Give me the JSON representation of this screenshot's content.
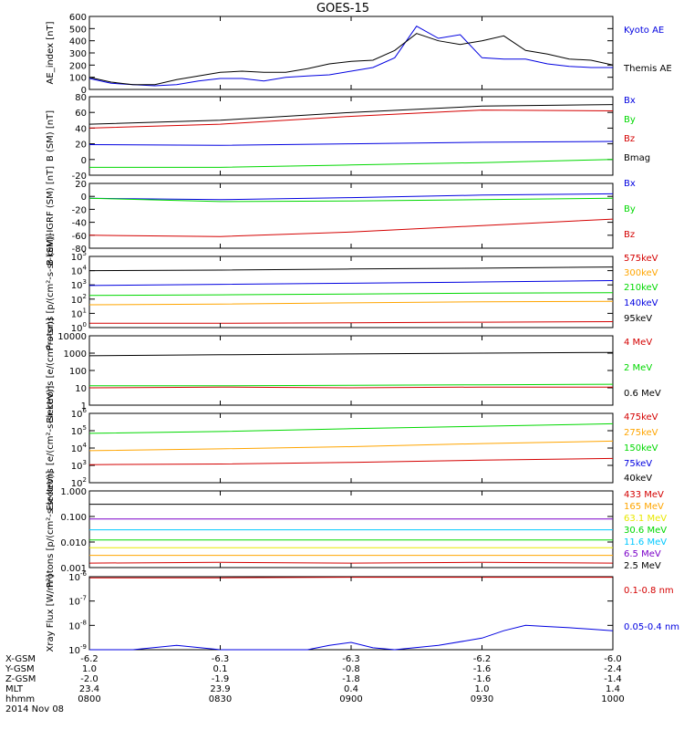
{
  "title": "GOES-15",
  "colors": {
    "black": "#000000",
    "red": "#d40000",
    "green": "#00d800",
    "blue": "#0000e0",
    "orange": "#ffa500",
    "cyan": "#00c8ff",
    "yellow": "#e8e800",
    "purple": "#7a00c8"
  },
  "chart_data": [
    {
      "type": "line",
      "panel": "ae-index",
      "ylabel": "AE_index [nT]",
      "ylim": [
        0,
        600
      ],
      "log": false,
      "yticks": [
        "0",
        "100",
        "200",
        "300",
        "400",
        "500",
        "600"
      ],
      "series": [
        {
          "name": "Kyoto AE",
          "color": "#0000e0",
          "x": [
            0,
            5,
            10,
            15,
            20,
            25,
            30,
            35,
            40,
            45,
            50,
            55,
            60,
            65,
            70,
            75,
            80,
            85,
            90,
            95,
            100,
            105,
            110,
            115,
            120
          ],
          "values": [
            90,
            50,
            40,
            30,
            40,
            70,
            90,
            90,
            70,
            100,
            110,
            120,
            150,
            180,
            260,
            520,
            420,
            450,
            260,
            250,
            250,
            210,
            190,
            180,
            180
          ]
        },
        {
          "name": "Themis AE",
          "color": "#000000",
          "x": [
            0,
            5,
            10,
            15,
            20,
            25,
            30,
            35,
            40,
            45,
            50,
            55,
            60,
            65,
            70,
            75,
            80,
            85,
            90,
            95,
            100,
            105,
            110,
            115,
            120
          ],
          "values": [
            100,
            60,
            40,
            40,
            80,
            110,
            140,
            150,
            140,
            140,
            170,
            210,
            230,
            240,
            320,
            460,
            400,
            370,
            400,
            440,
            320,
            290,
            250,
            240,
            200
          ]
        }
      ]
    },
    {
      "type": "line",
      "panel": "b-sm",
      "ylabel": "B (SM) [nT]",
      "ylim": [
        -20,
        80
      ],
      "log": false,
      "yticks": [
        "-20",
        "0",
        "20",
        "40",
        "60",
        "80"
      ],
      "series": [
        {
          "name": "Bx",
          "color": "#0000e0",
          "x": [
            0,
            30,
            60,
            90,
            120
          ],
          "values": [
            19,
            18,
            20,
            22,
            23
          ]
        },
        {
          "name": "By",
          "color": "#00d800",
          "x": [
            0,
            30,
            60,
            90,
            120
          ],
          "values": [
            -10,
            -10,
            -7,
            -4,
            0
          ]
        },
        {
          "name": "Bz",
          "color": "#d40000",
          "x": [
            0,
            30,
            60,
            90,
            120
          ],
          "values": [
            40,
            45,
            55,
            63,
            62
          ]
        },
        {
          "name": "Bmag",
          "color": "#000000",
          "x": [
            0,
            30,
            60,
            90,
            120
          ],
          "values": [
            45,
            50,
            60,
            68,
            70
          ]
        }
      ]
    },
    {
      "type": "line",
      "panel": "b-sm-igrf",
      "ylabel": "B (SM)-IGRF (SM) [nT]",
      "ylim": [
        -80,
        20
      ],
      "log": false,
      "yticks": [
        "-80",
        "-60",
        "-40",
        "-20",
        "0",
        "20"
      ],
      "series": [
        {
          "name": "Bx",
          "color": "#0000e0",
          "x": [
            0,
            30,
            60,
            90,
            120
          ],
          "values": [
            -3,
            -5,
            -2,
            2,
            4
          ]
        },
        {
          "name": "By",
          "color": "#00d800",
          "x": [
            0,
            30,
            60,
            90,
            120
          ],
          "values": [
            -3,
            -8,
            -7,
            -5,
            -3
          ]
        },
        {
          "name": "Bz",
          "color": "#d40000",
          "x": [
            0,
            30,
            60,
            90,
            120
          ],
          "values": [
            -60,
            -62,
            -55,
            -45,
            -35
          ]
        }
      ]
    },
    {
      "type": "line",
      "panel": "mag-protons",
      "ylabel": "Protons [p/(cm²-s-sr-keV)]",
      "ylim": [
        1,
        100000
      ],
      "log": true,
      "yticks": [
        {
          "base": "10",
          "exp": "0"
        },
        {
          "base": "10",
          "exp": "1"
        },
        {
          "base": "10",
          "exp": "2"
        },
        {
          "base": "10",
          "exp": "3"
        },
        {
          "base": "10",
          "exp": "4"
        },
        {
          "base": "10",
          "exp": "5"
        }
      ],
      "series": [
        {
          "name": "575keV",
          "color": "#d40000",
          "x": [
            0,
            30,
            60,
            90,
            120
          ],
          "values": [
            2,
            2,
            2.2,
            2.4,
            2.6
          ]
        },
        {
          "name": "300keV",
          "color": "#ffa500",
          "x": [
            0,
            30,
            60,
            90,
            120
          ],
          "values": [
            40,
            45,
            55,
            65,
            70
          ]
        },
        {
          "name": "210keV",
          "color": "#00d800",
          "x": [
            0,
            30,
            60,
            90,
            120
          ],
          "values": [
            180,
            200,
            230,
            260,
            280
          ]
        },
        {
          "name": "140keV",
          "color": "#0000e0",
          "x": [
            0,
            30,
            60,
            90,
            120
          ],
          "values": [
            900,
            1100,
            1300,
            1600,
            2000
          ]
        },
        {
          "name": "95keV",
          "color": "#000000",
          "x": [
            0,
            30,
            60,
            90,
            120
          ],
          "values": [
            10000,
            11000,
            13000,
            15000,
            18000
          ]
        }
      ]
    },
    {
      "type": "line",
      "panel": "mag-electrons",
      "ylabel": "Electrons [e/(cm²-s-sr)]",
      "ylim": [
        1,
        10000
      ],
      "log": true,
      "yticks": [
        "1",
        "10",
        "100",
        "1000",
        "10000"
      ],
      "series": [
        {
          "name": "4 MeV",
          "color": "#d40000",
          "x": [
            0,
            30,
            60,
            90,
            120
          ],
          "values": [
            10,
            11,
            10,
            11,
            11
          ]
        },
        {
          "name": "2 MeV",
          "color": "#00d800",
          "x": [
            0,
            30,
            60,
            90,
            120
          ],
          "values": [
            13,
            13,
            14,
            15,
            16
          ]
        },
        {
          "name": "0.6 MeV",
          "color": "#000000",
          "x": [
            0,
            30,
            60,
            90,
            120
          ],
          "values": [
            700,
            800,
            900,
            1000,
            1100
          ]
        }
      ]
    },
    {
      "type": "line",
      "panel": "mag-electrons-kev",
      "ylabel": "Electrons [e/(cm²-s-sr-keV)]",
      "ylim": [
        100,
        1000000
      ],
      "log": true,
      "yticks": [
        {
          "base": "10",
          "exp": "2"
        },
        {
          "base": "10",
          "exp": "3"
        },
        {
          "base": "10",
          "exp": "4"
        },
        {
          "base": "10",
          "exp": "5"
        },
        {
          "base": "10",
          "exp": "6"
        }
      ],
      "series": [
        {
          "name": "475keV",
          "color": "#d40000",
          "x": [
            0,
            30,
            60,
            90,
            120
          ],
          "values": [
            1100,
            1200,
            1500,
            2000,
            2500
          ]
        },
        {
          "name": "275keV",
          "color": "#ffa500",
          "x": [
            0,
            30,
            60,
            90,
            120
          ],
          "values": [
            7000,
            9000,
            12000,
            18000,
            25000
          ]
        },
        {
          "name": "150keV",
          "color": "#00d800",
          "x": [
            0,
            30,
            60,
            90,
            120
          ],
          "values": [
            70000,
            90000,
            130000,
            180000,
            250000
          ]
        },
        {
          "name": "75keV",
          "color": "#0000e0",
          "x": [
            0,
            30,
            60,
            90,
            120
          ],
          "values": [
            null,
            null,
            null,
            null,
            null
          ]
        },
        {
          "name": "40keV",
          "color": "#000000",
          "x": [
            0,
            30,
            60,
            90,
            120
          ],
          "values": [
            null,
            null,
            null,
            null,
            null
          ]
        }
      ]
    },
    {
      "type": "line",
      "panel": "energetic-protons",
      "ylabel": "Protons [p/(cm²-s-sr-keV)]",
      "ylim": [
        0.001,
        1
      ],
      "log": true,
      "yticks": [
        "0.001",
        "0.010",
        "0.100",
        "1.000"
      ],
      "series": [
        {
          "name": "433 MeV",
          "color": "#d40000",
          "x": [
            0,
            30,
            60,
            90,
            120
          ],
          "values": [
            0.0015,
            0.0016,
            0.0015,
            0.0016,
            0.0015
          ]
        },
        {
          "name": "165 MeV",
          "color": "#ffa500",
          "x": [
            0,
            30,
            60,
            90,
            120
          ],
          "values": [
            0.003,
            0.003,
            0.003,
            0.003,
            0.003
          ]
        },
        {
          "name": "63.1 MeV",
          "color": "#e8e800",
          "x": [
            0,
            30,
            60,
            90,
            120
          ],
          "values": [
            0.006,
            0.006,
            0.006,
            0.006,
            0.006
          ]
        },
        {
          "name": "30.6 MeV",
          "color": "#00d800",
          "x": [
            0,
            30,
            60,
            90,
            120
          ],
          "values": [
            0.012,
            0.012,
            0.012,
            0.012,
            0.012
          ]
        },
        {
          "name": "11.6 MeV",
          "color": "#00c8ff",
          "x": [
            0,
            30,
            60,
            90,
            120
          ],
          "values": [
            0.03,
            0.03,
            0.03,
            0.03,
            0.03
          ]
        },
        {
          "name": "6.5 MeV",
          "color": "#7a00c8",
          "x": [
            0,
            30,
            60,
            90,
            120
          ],
          "values": [
            0.08,
            0.08,
            0.08,
            0.08,
            0.08
          ]
        },
        {
          "name": "2.5 MeV",
          "color": "#000000",
          "x": [
            0,
            30,
            60,
            90,
            120
          ],
          "values": [
            0.3,
            0.3,
            0.3,
            0.3,
            0.3
          ]
        }
      ]
    },
    {
      "type": "line",
      "panel": "xray-flux",
      "ylabel": "Xray Flux [W/m²]",
      "ylim": [
        1e-09,
        1e-06
      ],
      "log": true,
      "yticks": [
        {
          "base": "10",
          "exp": "-9"
        },
        {
          "base": "10",
          "exp": "-8"
        },
        {
          "base": "10",
          "exp": "-7"
        },
        {
          "base": "10",
          "exp": "-6"
        }
      ],
      "series": [
        {
          "name": "0.1-0.8 nm",
          "color": "#d40000",
          "x": [
            0,
            30,
            60,
            90,
            120
          ],
          "values": [
            9e-07,
            9e-07,
            9.5e-07,
            9.5e-07,
            9.5e-07
          ]
        },
        {
          "name": "0.05-0.4 nm",
          "color": "#0000e0",
          "x": [
            0,
            10,
            20,
            30,
            40,
            50,
            55,
            60,
            65,
            70,
            80,
            90,
            95,
            100,
            105,
            110,
            115,
            120
          ],
          "values": [
            1e-09,
            1e-09,
            1.5e-09,
            1e-09,
            1e-09,
            1e-09,
            1.5e-09,
            2e-09,
            1.2e-09,
            1e-09,
            1.5e-09,
            3e-09,
            6e-09,
            1e-08,
            9e-09,
            8e-09,
            7e-09,
            6e-09
          ]
        }
      ]
    }
  ],
  "x_axis": {
    "row_labels": [
      "X-GSM",
      "Y-GSM",
      "Z-GSM",
      "MLT",
      "hhmm",
      "2014 Nov 08"
    ],
    "columns": [
      {
        "x_gsm": "-6.2",
        "y_gsm": "1.0",
        "z_gsm": "-2.0",
        "mlt": "23.4",
        "hhmm": "0800"
      },
      {
        "x_gsm": "-6.3",
        "y_gsm": "0.1",
        "z_gsm": "-1.9",
        "mlt": "23.9",
        "hhmm": "0830"
      },
      {
        "x_gsm": "-6.3",
        "y_gsm": "-0.8",
        "z_gsm": "-1.8",
        "mlt": "0.4",
        "hhmm": "0900"
      },
      {
        "x_gsm": "-6.2",
        "y_gsm": "-1.6",
        "z_gsm": "-1.6",
        "mlt": "1.0",
        "hhmm": "0930"
      },
      {
        "x_gsm": "-6.0",
        "y_gsm": "-2.4",
        "z_gsm": "-1.4",
        "mlt": "1.4",
        "hhmm": "1000"
      }
    ]
  }
}
